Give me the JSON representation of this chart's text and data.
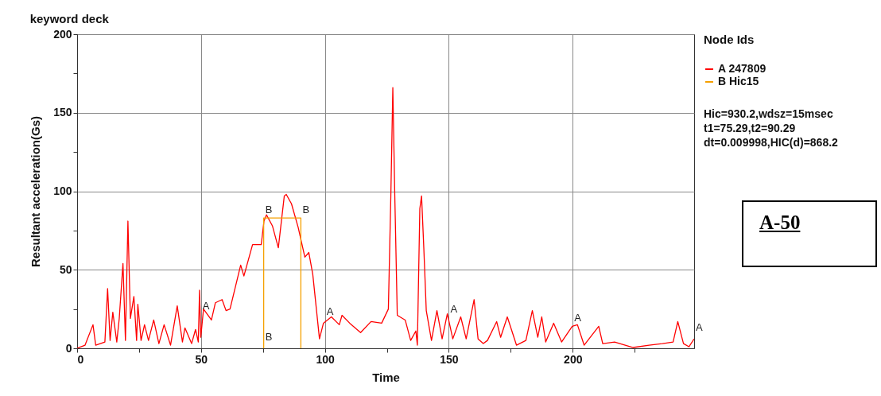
{
  "chart_data": {
    "type": "line",
    "title": "keyword deck",
    "xlabel": "Time",
    "ylabel": "Resultant acceleration(Gs)",
    "legend_title": "Node Ids",
    "legend": "right",
    "grid": true,
    "xlim": [
      0,
      249
    ],
    "xticks": [
      0,
      {
        "value": 25,
        "label": null
      },
      50,
      {
        "value": 75,
        "label": null
      },
      100,
      {
        "value": 125,
        "label": null
      },
      150,
      {
        "value": 175,
        "label": null
      },
      200,
      {
        "value": 225,
        "label": null
      }
    ],
    "ylim": [
      0,
      200
    ],
    "yticks": [
      0,
      {
        "value": 25,
        "label": null
      },
      50,
      {
        "value": 75,
        "label": null
      },
      100,
      {
        "value": 125,
        "label": null
      },
      150,
      {
        "value": 175,
        "label": null
      },
      200
    ],
    "series": [
      {
        "name": "A 247809",
        "color": "#ff0000",
        "x": [
          0,
          3.2,
          6.4,
          7.5,
          11.2,
          12.3,
          13.3,
          14.4,
          16,
          17,
          18.5,
          19.5,
          20.5,
          21.5,
          22.9,
          24,
          24.5,
          25.8,
          27.2,
          28.8,
          30.9,
          33,
          35.1,
          37.7,
          40.4,
          42.5,
          43.5,
          46.2,
          47.8,
          48.9,
          49.4,
          49.9,
          51,
          54.2,
          55.8,
          58.5,
          60.1,
          61.7,
          66,
          67.3,
          70.8,
          74.3,
          75.4,
          76.4,
          78.8,
          81.2,
          83.6,
          84.4,
          86.5,
          89.2,
          91.9,
          93.5,
          95.1,
          97.8,
          99.4,
          102.6,
          105.8,
          106.9,
          110,
          114.4,
          118.6,
          122.9,
          125.6,
          126.6,
          127.4,
          128.2,
          129.2,
          132.4,
          134.6,
          136.7,
          137.3,
          138.3,
          139,
          139.9,
          140.9,
          143,
          145.2,
          147.3,
          149.4,
          151.6,
          154.8,
          157,
          160.2,
          161.8,
          163.9,
          165.6,
          169.3,
          170.9,
          173.6,
          177.3,
          181.1,
          183.7,
          185.9,
          187.5,
          189.1,
          192.3,
          195.5,
          199.8,
          201.9,
          204.6,
          210.5,
          212.1,
          216.9,
          224.4,
          230.8,
          236.2,
          240.5,
          242.4,
          244.7,
          246.9,
          249
        ],
        "values": [
          0,
          2,
          15,
          2,
          4,
          38,
          5,
          23,
          4,
          19,
          54,
          5,
          81,
          19,
          33,
          5,
          28,
          5,
          15,
          5,
          18,
          3,
          15,
          2,
          27,
          4,
          13,
          3,
          12,
          4,
          37,
          7,
          25,
          18,
          29,
          31,
          24,
          25,
          53,
          46,
          66,
          66,
          81,
          85,
          78,
          64,
          97,
          98,
          92,
          77,
          58,
          61,
          47,
          6,
          16,
          20,
          15,
          21,
          16,
          10,
          17,
          16,
          25,
          97,
          166,
          97,
          21,
          18,
          5,
          11,
          2,
          89,
          97,
          64,
          24,
          5,
          24,
          6,
          22,
          6,
          20,
          6,
          31,
          6,
          3,
          5,
          17,
          7,
          20,
          2,
          5,
          24,
          7,
          20,
          4,
          16,
          4,
          14,
          15,
          2,
          14,
          3,
          4,
          0.5,
          2,
          3,
          4,
          17,
          3,
          1,
          6
        ]
      },
      {
        "name": "B Hic15",
        "color": "#f5a000",
        "x": [
          75.29,
          75.29,
          90.29,
          90.29
        ],
        "values": [
          0,
          83,
          83,
          0
        ]
      }
    ],
    "annotations": [
      {
        "text": "A",
        "x": 50,
        "y": 22
      },
      {
        "text": "A",
        "x": 100,
        "y": 18
      },
      {
        "text": "A",
        "x": 150,
        "y": 20
      },
      {
        "text": "A",
        "x": 200,
        "y": 14
      },
      {
        "text": "A",
        "x": 249,
        "y": 8
      },
      {
        "text": "B",
        "x": 75.29,
        "y": 83
      },
      {
        "text": "B",
        "x": 90.29,
        "y": 83
      },
      {
        "text": "B",
        "x": 75.29,
        "y": 2
      },
      "Hic=930.2,wdsz=15msec",
      "t1=75.29,t2=90.29",
      "dt=0.009998,HIC(d)=868.2",
      "A-50"
    ]
  }
}
